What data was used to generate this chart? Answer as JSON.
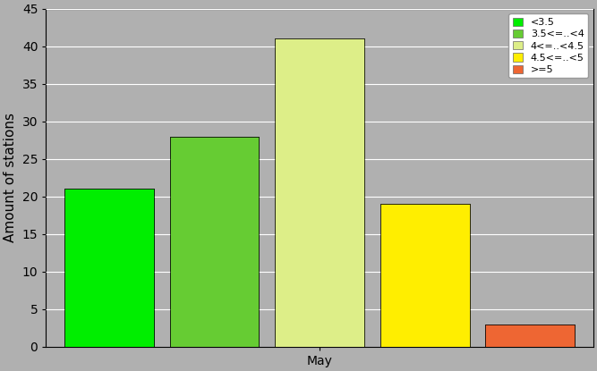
{
  "bars": [
    {
      "label": "<3.5",
      "value": 21,
      "color": "#00ee00"
    },
    {
      "label": "3.5<=..<4",
      "value": 28,
      "color": "#66cc33"
    },
    {
      "label": "4<=..<4.5",
      "value": 41,
      "color": "#ddee88"
    },
    {
      "label": "4.5<=..<5",
      "value": 19,
      "color": "#ffee00"
    },
    {
      "label": ">=5",
      "value": 3,
      "color": "#ee6633"
    }
  ],
  "ylabel": "Amount of stations",
  "xlabel": "May",
  "ylim": [
    0,
    45
  ],
  "yticks": [
    0,
    5,
    10,
    15,
    20,
    25,
    30,
    35,
    40,
    45
  ],
  "background_color": "#b0b0b0",
  "plot_background_color": "#b0b0b0",
  "grid_color": "#ffffff",
  "legend_fontsize": 8,
  "axis_fontsize": 10,
  "ylabel_fontsize": 11
}
